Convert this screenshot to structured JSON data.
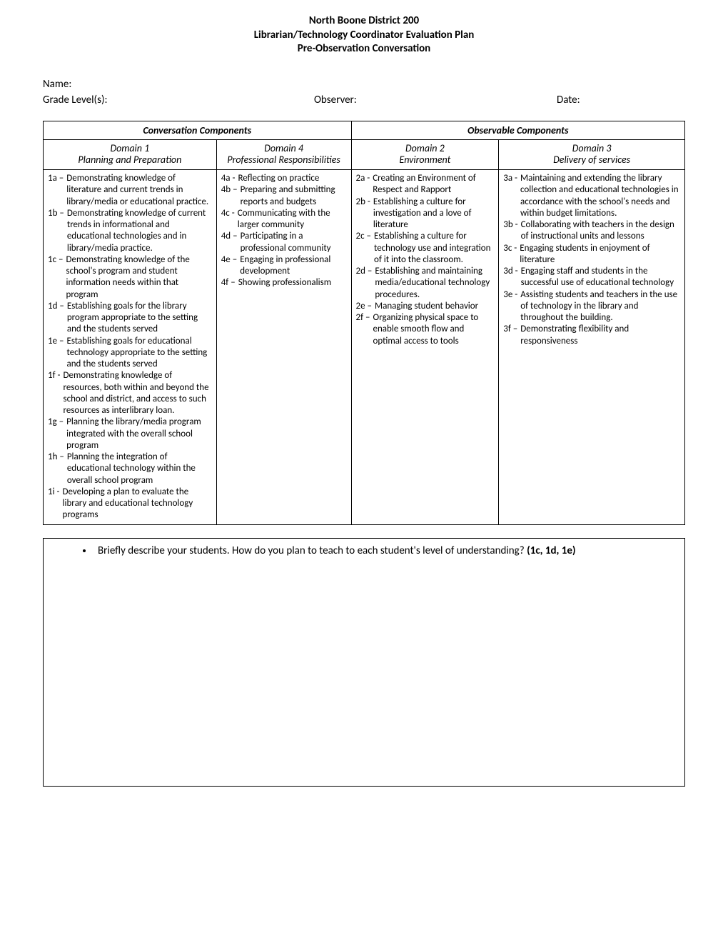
{
  "header": {
    "line1": "North Boone District 200",
    "line2": "Librarian/Technology Coordinator Evaluation Plan",
    "line3": "Pre-Observation Conversation"
  },
  "info": {
    "name_label": "Name:",
    "grade_label": "Grade Level(s):",
    "observer_label": "Observer:",
    "date_label": "Date:"
  },
  "sections": {
    "conversation": "Conversation Components",
    "observable": "Observable Components"
  },
  "domains": {
    "d1": {
      "title": "Domain 1",
      "sub": "Planning and Preparation"
    },
    "d4": {
      "title": "Domain 4",
      "sub": "Professional Responsibilities"
    },
    "d2": {
      "title": "Domain 2",
      "sub": "Environment"
    },
    "d3": {
      "title": "Domain 3",
      "sub": "Delivery of services"
    }
  },
  "d1_items": [
    {
      "code": "1a –",
      "text": "Demonstrating knowledge of literature and current trends in library/media or educational practice."
    },
    {
      "code": "1b –",
      "text": "Demonstrating knowledge of current trends in informational and educational technologies and in library/media practice."
    },
    {
      "code": "1c –",
      "text": "Demonstrating knowledge of the school's program and student information needs within that program"
    },
    {
      "code": "1d –",
      "text": "Establishing goals for the library program appropriate to the setting and the students served"
    },
    {
      "code": "1e –",
      "text": "Establishing goals for educational technology appropriate to the setting and the students served"
    },
    {
      "code": "1f - ",
      "text": "Demonstrating knowledge of resources, both within and beyond the school and district, and access to such resources as interlibrary loan."
    },
    {
      "code": "1g –",
      "text": "Planning the library/media program integrated with the overall school program"
    },
    {
      "code": "1h –",
      "text": "Planning the integration of educational technology within the overall school program"
    },
    {
      "code": "1i - ",
      "text": "Developing a plan to evaluate the library and educational technology programs"
    }
  ],
  "d4_items": [
    {
      "code": "4a -",
      "text": "Reflecting on practice"
    },
    {
      "code": "4b –",
      "text": "Preparing and submitting reports and budgets"
    },
    {
      "code": "4c -",
      "text": "Communicating with the larger community"
    },
    {
      "code": "4d –",
      "text": "Participating in a professional community"
    },
    {
      "code": "4e –",
      "text": "Engaging in professional development"
    },
    {
      "code": "4f –",
      "text": "Showing professionalism"
    }
  ],
  "d2_items": [
    {
      "code": "2a -",
      "text": "Creating an Environment of Respect and Rapport"
    },
    {
      "code": "2b -",
      "text": "Establishing a culture for investigation and a love of literature"
    },
    {
      "code": "2c –",
      "text": "Establishing a culture for technology use and integration of it into the classroom."
    },
    {
      "code": "2d –",
      "text": "Establishing and maintaining media/educational technology procedures."
    },
    {
      "code": "2e –",
      "text": "Managing student behavior"
    },
    {
      "code": "2f –",
      "text": "Organizing physical space to enable smooth flow and optimal access to tools"
    }
  ],
  "d3_items": [
    {
      "code": "3a - ",
      "text": "Maintaining and extending the library collection and educational technologies in accordance with the school's needs and within budget limitations."
    },
    {
      "code": "3b - ",
      "text": "Collaborating with teachers in the design of instructional units and lessons"
    },
    {
      "code": "3c -  ",
      "text": "Engaging students in enjoyment of literature"
    },
    {
      "code": "3d - ",
      "text": "Engaging staff and students in the successful use of educational technology"
    },
    {
      "code": "3e - ",
      "text": "Assisting students and teachers in the use of technology in the library and throughout the building."
    },
    {
      "code": "3f –",
      "text": "Demonstrating flexibility and responsiveness"
    }
  ],
  "prompt": {
    "text": "Briefly describe your students. How do you plan to teach to each student's level of understanding? ",
    "ref": "(1c, 1d, 1e)"
  },
  "layout": {
    "col_widths_pct": [
      27,
      21,
      23,
      29
    ]
  }
}
